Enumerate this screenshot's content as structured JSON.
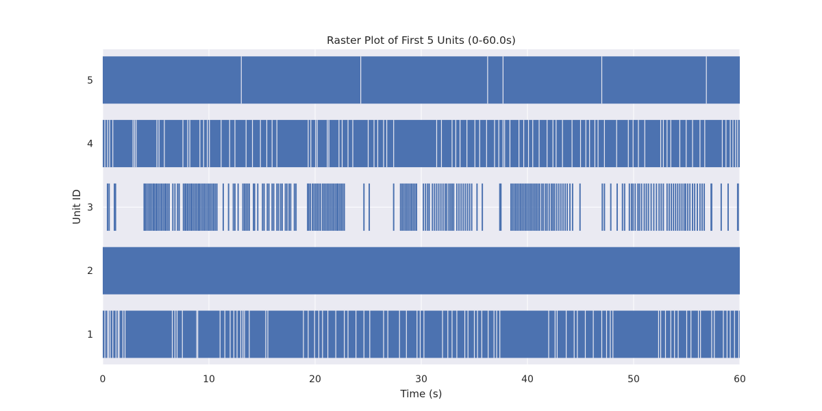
{
  "chart_data": {
    "type": "raster",
    "title": "Raster Plot of First 5 Units (0-60.0s)",
    "xlabel": "Time (s)",
    "ylabel": "Unit ID",
    "xlim": [
      0,
      60
    ],
    "xticks": [
      "0",
      "10",
      "20",
      "30",
      "40",
      "50",
      "60"
    ],
    "xtick_values": [
      0,
      10,
      20,
      30,
      40,
      50,
      60
    ],
    "yticks": [
      "1",
      "2",
      "3",
      "4",
      "5"
    ],
    "grid": true,
    "colors": {
      "spikes": "#4c72b0",
      "plot_bg": "#eaeaf2",
      "grid": "#ffffff",
      "text": "#262626"
    },
    "series": [
      {
        "name": "1",
        "fill": true,
        "gaps": [
          0.2,
          0.45,
          0.55,
          0.7,
          0.95,
          1.25,
          1.45,
          1.55,
          1.9,
          2.1,
          6.55,
          6.8,
          7.0,
          7.5,
          8.85,
          8.95,
          11.05,
          11.5,
          12.0,
          12.35,
          12.65,
          13.0,
          13.2,
          13.35,
          13.8,
          15.35,
          15.55,
          18.9,
          19.35,
          19.95,
          20.35,
          20.7,
          21.2,
          21.95,
          22.75,
          23.1,
          23.85,
          24.6,
          25.15,
          26.45,
          26.85,
          27.95,
          28.6,
          29.6,
          29.9,
          30.25,
          32.0,
          32.5,
          32.9,
          33.35,
          34.1,
          34.4,
          35.0,
          35.3,
          35.7,
          36.3,
          36.85,
          37.1,
          37.4,
          42.0,
          42.6,
          42.8,
          43.65,
          44.4,
          44.7,
          45.45,
          46.2,
          47.0,
          47.45,
          47.8,
          48.05,
          52.35,
          52.55,
          53.0,
          53.5,
          53.85,
          54.2,
          55.0,
          55.4,
          56.1,
          56.3,
          57.35,
          57.6,
          58.45,
          58.8,
          59.1,
          59.5,
          59.9
        ]
      },
      {
        "name": "2",
        "fill": true,
        "gaps": []
      },
      {
        "name": "3",
        "fill": false,
        "spikes": [
          0.45,
          0.6,
          1.1,
          1.2,
          3.9,
          4.0,
          4.15,
          4.3,
          4.45,
          4.6,
          4.75,
          4.85,
          5.0,
          5.1,
          5.25,
          5.4,
          5.55,
          5.7,
          5.85,
          5.95,
          6.1,
          6.25,
          6.6,
          6.8,
          7.05,
          7.2,
          7.6,
          7.75,
          7.85,
          8.0,
          8.15,
          8.3,
          8.4,
          8.55,
          8.7,
          8.85,
          9.0,
          9.1,
          9.25,
          9.4,
          9.55,
          9.7,
          9.85,
          10.0,
          10.15,
          10.3,
          10.45,
          10.6,
          10.75,
          11.35,
          11.85,
          12.3,
          12.45,
          12.75,
          13.2,
          13.35,
          13.5,
          13.65,
          13.8,
          14.2,
          14.3,
          14.6,
          15.05,
          15.2,
          15.5,
          15.65,
          15.95,
          16.1,
          16.4,
          16.55,
          16.75,
          16.9,
          17.2,
          17.35,
          17.55,
          17.7,
          18.05,
          18.2,
          19.3,
          19.4,
          19.55,
          19.75,
          19.9,
          20.05,
          20.2,
          20.35,
          20.5,
          20.7,
          20.85,
          21.0,
          21.15,
          21.3,
          21.45,
          21.6,
          21.75,
          21.9,
          22.05,
          22.15,
          22.3,
          22.45,
          22.6,
          22.75,
          24.6,
          25.1,
          27.4,
          28.05,
          28.2,
          28.35,
          28.5,
          28.65,
          28.8,
          28.95,
          29.1,
          29.25,
          29.4,
          29.55,
          30.2,
          30.4,
          30.6,
          30.75,
          31.05,
          31.25,
          31.45,
          31.65,
          31.85,
          32.05,
          32.25,
          32.4,
          32.6,
          32.75,
          32.9,
          33.05,
          33.35,
          33.55,
          33.75,
          33.95,
          34.15,
          34.35,
          34.55,
          34.75,
          35.25,
          35.75,
          37.4,
          37.5,
          38.45,
          38.6,
          38.75,
          38.9,
          39.05,
          39.2,
          39.35,
          39.5,
          39.65,
          39.8,
          39.95,
          40.1,
          40.25,
          40.4,
          40.55,
          40.7,
          40.85,
          41.0,
          41.15,
          41.35,
          41.5,
          41.7,
          41.85,
          42.05,
          42.25,
          42.4,
          42.55,
          42.75,
          42.95,
          43.15,
          43.35,
          43.55,
          43.75,
          44.0,
          44.25,
          44.95,
          47.05,
          47.25,
          47.85,
          48.45,
          48.95,
          49.15,
          49.6,
          49.8,
          49.95,
          50.15,
          50.4,
          50.55,
          50.75,
          51.0,
          51.2,
          51.4,
          51.65,
          51.9,
          52.15,
          52.4,
          52.6,
          52.8,
          53.15,
          53.35,
          53.55,
          53.75,
          53.95,
          54.15,
          54.35,
          54.55,
          54.75,
          54.9,
          55.1,
          55.3,
          55.55,
          55.75,
          56.0,
          56.25,
          56.45,
          56.65,
          57.3,
          57.35,
          58.25,
          58.9,
          59.8,
          59.85
        ]
      },
      {
        "name": "4",
        "fill": true,
        "gaps": [
          0.2,
          0.45,
          0.65,
          0.95,
          2.85,
          3.0,
          3.15,
          5.1,
          5.3,
          5.8,
          7.55,
          8.0,
          8.2,
          9.15,
          9.5,
          9.85,
          10.05,
          11.15,
          11.95,
          12.45,
          13.5,
          14.1,
          14.85,
          15.45,
          15.95,
          16.4,
          19.35,
          19.6,
          20.05,
          20.2,
          21.15,
          21.3,
          22.25,
          22.55,
          23.1,
          23.55,
          25.0,
          25.55,
          25.9,
          26.45,
          26.75,
          27.4,
          31.45,
          31.9,
          32.9,
          33.25,
          33.65,
          34.3,
          35.05,
          35.5,
          36.15,
          36.9,
          37.3,
          37.7,
          37.85,
          38.35,
          39.2,
          39.65,
          40.1,
          40.5,
          41.1,
          41.85,
          42.4,
          42.7,
          43.3,
          44.2,
          45.0,
          45.5,
          45.85,
          46.35,
          46.65,
          47.25,
          48.4,
          49.5,
          49.95,
          50.45,
          51.05,
          52.55,
          52.8,
          53.15,
          53.5,
          54.35,
          54.95,
          55.55,
          56.25,
          56.7,
          58.35,
          58.7,
          59.1,
          59.35,
          59.6,
          59.8
        ]
      },
      {
        "name": "5",
        "fill": true,
        "gaps": [
          13.05,
          24.3,
          36.25,
          37.7,
          47.0,
          56.85
        ]
      }
    ]
  }
}
